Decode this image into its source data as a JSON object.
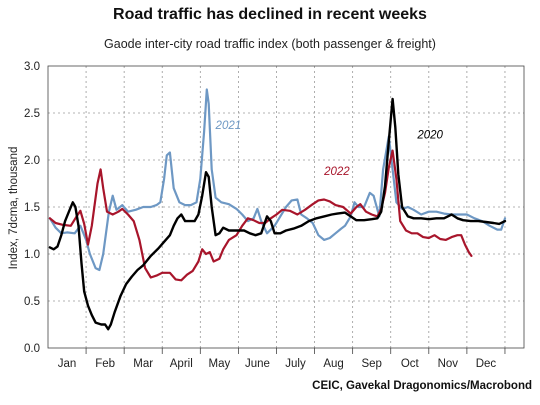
{
  "chart_data": {
    "type": "line",
    "title": "Road traffic has declined in recent weeks",
    "subtitle": "Gaode inter-city road traffic index (both passenger & freight)",
    "ylabel": "Index, 7dcma, thousand",
    "source": "CEIC, Gavekal Dragonomics/Macrobond",
    "ylim": [
      0,
      3.0
    ],
    "yticks": [
      "0.0",
      "0.5",
      "1.0",
      "1.5",
      "2.0",
      "2.5",
      "3.0"
    ],
    "xlim": [
      0,
      12.5
    ],
    "xticks": [
      "Jan",
      "Feb",
      "Mar",
      "April",
      "May",
      "June",
      "July",
      "Aug",
      "Sep",
      "Oct",
      "Nov",
      "Dec"
    ],
    "grid": true,
    "series": [
      {
        "name": "2021",
        "color": "#6e98c4",
        "points": [
          [
            0.05,
            1.38
          ],
          [
            0.2,
            1.28
          ],
          [
            0.35,
            1.22
          ],
          [
            0.5,
            1.23
          ],
          [
            0.7,
            1.22
          ],
          [
            0.85,
            1.3
          ],
          [
            1.0,
            1.15
          ],
          [
            1.1,
            1.0
          ],
          [
            1.25,
            0.85
          ],
          [
            1.35,
            0.83
          ],
          [
            1.45,
            1.0
          ],
          [
            1.6,
            1.45
          ],
          [
            1.7,
            1.62
          ],
          [
            1.8,
            1.47
          ],
          [
            1.95,
            1.52
          ],
          [
            2.1,
            1.45
          ],
          [
            2.3,
            1.47
          ],
          [
            2.5,
            1.5
          ],
          [
            2.7,
            1.5
          ],
          [
            2.85,
            1.52
          ],
          [
            2.95,
            1.55
          ],
          [
            3.05,
            1.8
          ],
          [
            3.12,
            2.05
          ],
          [
            3.2,
            2.08
          ],
          [
            3.3,
            1.7
          ],
          [
            3.45,
            1.55
          ],
          [
            3.6,
            1.52
          ],
          [
            3.75,
            1.52
          ],
          [
            3.9,
            1.55
          ],
          [
            4.0,
            1.8
          ],
          [
            4.1,
            2.3
          ],
          [
            4.17,
            2.75
          ],
          [
            4.22,
            2.6
          ],
          [
            4.3,
            1.9
          ],
          [
            4.4,
            1.6
          ],
          [
            4.55,
            1.55
          ],
          [
            4.75,
            1.53
          ],
          [
            4.95,
            1.48
          ],
          [
            5.1,
            1.42
          ],
          [
            5.25,
            1.35
          ],
          [
            5.4,
            1.38
          ],
          [
            5.5,
            1.48
          ],
          [
            5.6,
            1.35
          ],
          [
            5.75,
            1.22
          ],
          [
            5.95,
            1.3
          ],
          [
            6.1,
            1.4
          ],
          [
            6.25,
            1.5
          ],
          [
            6.4,
            1.57
          ],
          [
            6.55,
            1.58
          ],
          [
            6.65,
            1.42
          ],
          [
            6.8,
            1.38
          ],
          [
            6.95,
            1.33
          ],
          [
            7.1,
            1.2
          ],
          [
            7.25,
            1.15
          ],
          [
            7.4,
            1.17
          ],
          [
            7.55,
            1.22
          ],
          [
            7.7,
            1.27
          ],
          [
            7.8,
            1.3
          ],
          [
            7.95,
            1.4
          ],
          [
            8.05,
            1.55
          ],
          [
            8.15,
            1.5
          ],
          [
            8.3,
            1.5
          ],
          [
            8.45,
            1.65
          ],
          [
            8.55,
            1.62
          ],
          [
            8.7,
            1.4
          ],
          [
            8.8,
            1.9
          ],
          [
            8.95,
            2.25
          ],
          [
            9.05,
            1.9
          ],
          [
            9.15,
            1.55
          ],
          [
            9.3,
            1.48
          ],
          [
            9.45,
            1.5
          ],
          [
            9.6,
            1.47
          ],
          [
            9.8,
            1.42
          ],
          [
            10.0,
            1.45
          ],
          [
            10.2,
            1.45
          ],
          [
            10.4,
            1.43
          ],
          [
            10.6,
            1.42
          ],
          [
            10.8,
            1.42
          ],
          [
            11.0,
            1.42
          ],
          [
            11.2,
            1.38
          ],
          [
            11.4,
            1.35
          ],
          [
            11.6,
            1.3
          ],
          [
            11.8,
            1.26
          ],
          [
            11.9,
            1.26
          ],
          [
            12.0,
            1.38
          ]
        ]
      },
      {
        "name": "2022",
        "color": "#a8152b",
        "points": [
          [
            0.05,
            1.38
          ],
          [
            0.2,
            1.33
          ],
          [
            0.4,
            1.31
          ],
          [
            0.6,
            1.3
          ],
          [
            0.75,
            1.4
          ],
          [
            0.85,
            1.46
          ],
          [
            0.95,
            1.32
          ],
          [
            1.05,
            1.1
          ],
          [
            1.15,
            1.3
          ],
          [
            1.3,
            1.75
          ],
          [
            1.38,
            1.9
          ],
          [
            1.45,
            1.7
          ],
          [
            1.55,
            1.45
          ],
          [
            1.7,
            1.42
          ],
          [
            1.85,
            1.45
          ],
          [
            1.95,
            1.48
          ],
          [
            2.1,
            1.42
          ],
          [
            2.25,
            1.35
          ],
          [
            2.4,
            1.15
          ],
          [
            2.55,
            0.85
          ],
          [
            2.7,
            0.75
          ],
          [
            2.85,
            0.77
          ],
          [
            3.0,
            0.8
          ],
          [
            3.2,
            0.8
          ],
          [
            3.35,
            0.73
          ],
          [
            3.5,
            0.72
          ],
          [
            3.65,
            0.78
          ],
          [
            3.8,
            0.82
          ],
          [
            3.95,
            0.92
          ],
          [
            4.05,
            1.05
          ],
          [
            4.15,
            1.0
          ],
          [
            4.25,
            1.02
          ],
          [
            4.35,
            0.92
          ],
          [
            4.5,
            0.95
          ],
          [
            4.6,
            1.05
          ],
          [
            4.75,
            1.15
          ],
          [
            4.95,
            1.2
          ],
          [
            5.1,
            1.3
          ],
          [
            5.25,
            1.38
          ],
          [
            5.4,
            1.36
          ],
          [
            5.55,
            1.33
          ],
          [
            5.7,
            1.33
          ],
          [
            5.85,
            1.38
          ],
          [
            6.0,
            1.42
          ],
          [
            6.15,
            1.47
          ],
          [
            6.35,
            1.46
          ],
          [
            6.55,
            1.42
          ],
          [
            6.75,
            1.47
          ],
          [
            6.95,
            1.53
          ],
          [
            7.1,
            1.57
          ],
          [
            7.25,
            1.58
          ],
          [
            7.4,
            1.56
          ],
          [
            7.55,
            1.52
          ],
          [
            7.75,
            1.5
          ],
          [
            7.95,
            1.43
          ],
          [
            8.1,
            1.5
          ],
          [
            8.2,
            1.53
          ],
          [
            8.35,
            1.45
          ],
          [
            8.5,
            1.42
          ],
          [
            8.65,
            1.4
          ],
          [
            8.75,
            1.48
          ],
          [
            8.85,
            1.65
          ],
          [
            8.95,
            1.92
          ],
          [
            9.05,
            2.1
          ],
          [
            9.15,
            1.8
          ],
          [
            9.25,
            1.35
          ],
          [
            9.4,
            1.25
          ],
          [
            9.55,
            1.22
          ],
          [
            9.7,
            1.22
          ],
          [
            9.85,
            1.18
          ],
          [
            10.0,
            1.17
          ],
          [
            10.15,
            1.2
          ],
          [
            10.3,
            1.16
          ],
          [
            10.45,
            1.15
          ],
          [
            10.6,
            1.18
          ],
          [
            10.75,
            1.2
          ],
          [
            10.85,
            1.2
          ],
          [
            10.95,
            1.1
          ],
          [
            11.05,
            1.02
          ],
          [
            11.12,
            0.98
          ]
        ]
      },
      {
        "name": "2020",
        "color": "#000000",
        "points": [
          [
            0.05,
            1.07
          ],
          [
            0.15,
            1.05
          ],
          [
            0.25,
            1.08
          ],
          [
            0.35,
            1.2
          ],
          [
            0.45,
            1.35
          ],
          [
            0.55,
            1.45
          ],
          [
            0.65,
            1.55
          ],
          [
            0.72,
            1.5
          ],
          [
            0.8,
            1.3
          ],
          [
            0.88,
            0.9
          ],
          [
            0.95,
            0.6
          ],
          [
            1.05,
            0.45
          ],
          [
            1.15,
            0.35
          ],
          [
            1.25,
            0.27
          ],
          [
            1.4,
            0.25
          ],
          [
            1.5,
            0.25
          ],
          [
            1.58,
            0.2
          ],
          [
            1.65,
            0.25
          ],
          [
            1.75,
            0.38
          ],
          [
            1.9,
            0.55
          ],
          [
            2.05,
            0.68
          ],
          [
            2.2,
            0.76
          ],
          [
            2.35,
            0.83
          ],
          [
            2.5,
            0.88
          ],
          [
            2.7,
            0.98
          ],
          [
            2.9,
            1.06
          ],
          [
            3.05,
            1.13
          ],
          [
            3.2,
            1.2
          ],
          [
            3.3,
            1.3
          ],
          [
            3.4,
            1.38
          ],
          [
            3.5,
            1.42
          ],
          [
            3.6,
            1.35
          ],
          [
            3.7,
            1.35
          ],
          [
            3.85,
            1.35
          ],
          [
            3.95,
            1.42
          ],
          [
            4.05,
            1.62
          ],
          [
            4.15,
            1.87
          ],
          [
            4.22,
            1.82
          ],
          [
            4.3,
            1.5
          ],
          [
            4.4,
            1.2
          ],
          [
            4.5,
            1.22
          ],
          [
            4.6,
            1.28
          ],
          [
            4.75,
            1.25
          ],
          [
            4.95,
            1.25
          ],
          [
            5.15,
            1.25
          ],
          [
            5.3,
            1.22
          ],
          [
            5.45,
            1.2
          ],
          [
            5.6,
            1.22
          ],
          [
            5.75,
            1.4
          ],
          [
            5.85,
            1.35
          ],
          [
            5.95,
            1.22
          ],
          [
            6.1,
            1.22
          ],
          [
            6.25,
            1.25
          ],
          [
            6.45,
            1.27
          ],
          [
            6.65,
            1.3
          ],
          [
            6.85,
            1.35
          ],
          [
            7.05,
            1.38
          ],
          [
            7.25,
            1.4
          ],
          [
            7.45,
            1.42
          ],
          [
            7.6,
            1.43
          ],
          [
            7.8,
            1.44
          ],
          [
            7.95,
            1.4
          ],
          [
            8.1,
            1.36
          ],
          [
            8.3,
            1.36
          ],
          [
            8.5,
            1.37
          ],
          [
            8.65,
            1.38
          ],
          [
            8.75,
            1.45
          ],
          [
            8.85,
            1.72
          ],
          [
            8.95,
            2.2
          ],
          [
            9.05,
            2.65
          ],
          [
            9.12,
            2.35
          ],
          [
            9.2,
            1.85
          ],
          [
            9.3,
            1.5
          ],
          [
            9.45,
            1.4
          ],
          [
            9.6,
            1.38
          ],
          [
            9.8,
            1.38
          ],
          [
            10.0,
            1.37
          ],
          [
            10.2,
            1.38
          ],
          [
            10.4,
            1.38
          ],
          [
            10.5,
            1.4
          ],
          [
            10.6,
            1.42
          ],
          [
            10.75,
            1.38
          ],
          [
            10.9,
            1.36
          ],
          [
            11.1,
            1.35
          ],
          [
            11.3,
            1.35
          ],
          [
            11.5,
            1.34
          ],
          [
            11.7,
            1.33
          ],
          [
            11.85,
            1.32
          ],
          [
            12.0,
            1.35
          ]
        ]
      }
    ],
    "annotations": [
      {
        "text": "2021",
        "x": 4.4,
        "y": 2.33,
        "series": "2021"
      },
      {
        "text": "2022",
        "x": 7.25,
        "y": 1.84,
        "series": "2022"
      },
      {
        "text": "2020",
        "x": 9.7,
        "y": 2.23,
        "series": "2020"
      }
    ]
  }
}
